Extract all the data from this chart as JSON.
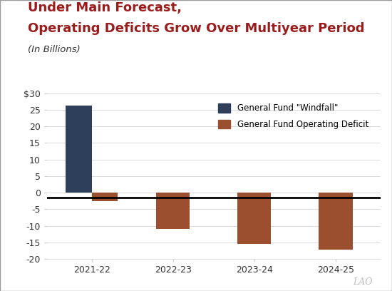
{
  "title_line1": "Under Main Forecast,",
  "title_line2": "Operating Deficits Grow Over Multiyear Period",
  "subtitle": "(In Billions)",
  "title_color": "#9B1C1C",
  "subtitle_color": "#333333",
  "categories": [
    "2021-22",
    "2022-23",
    "2023-24",
    "2024-25"
  ],
  "windfall_values": [
    26.3,
    0,
    0,
    0
  ],
  "deficit_values": [
    -2.5,
    -11.0,
    -15.5,
    -17.2
  ],
  "windfall_color": "#2E3F5C",
  "deficit_color": "#9B4F2E",
  "ylim": [
    -20,
    30
  ],
  "yticks": [
    -20,
    -15,
    -10,
    -5,
    0,
    5,
    10,
    15,
    20,
    25,
    30
  ],
  "ytick_labels": [
    "-20",
    "-15",
    "-10",
    "-5",
    "0",
    "5",
    "10",
    "15",
    "20",
    "25",
    "$30"
  ],
  "zero_line_y": -1.5,
  "legend_windfall": "General Fund \"Windfall\"",
  "legend_deficit": "General Fund Operating Deficit",
  "background_color": "#FFFFFF",
  "bar_width": 0.32,
  "lao_text": "LAO",
  "border_color": "#999999",
  "grid_color": "#CCCCCC",
  "tick_color": "#666666",
  "title_fontsize": 13,
  "subtitle_fontsize": 9.5
}
